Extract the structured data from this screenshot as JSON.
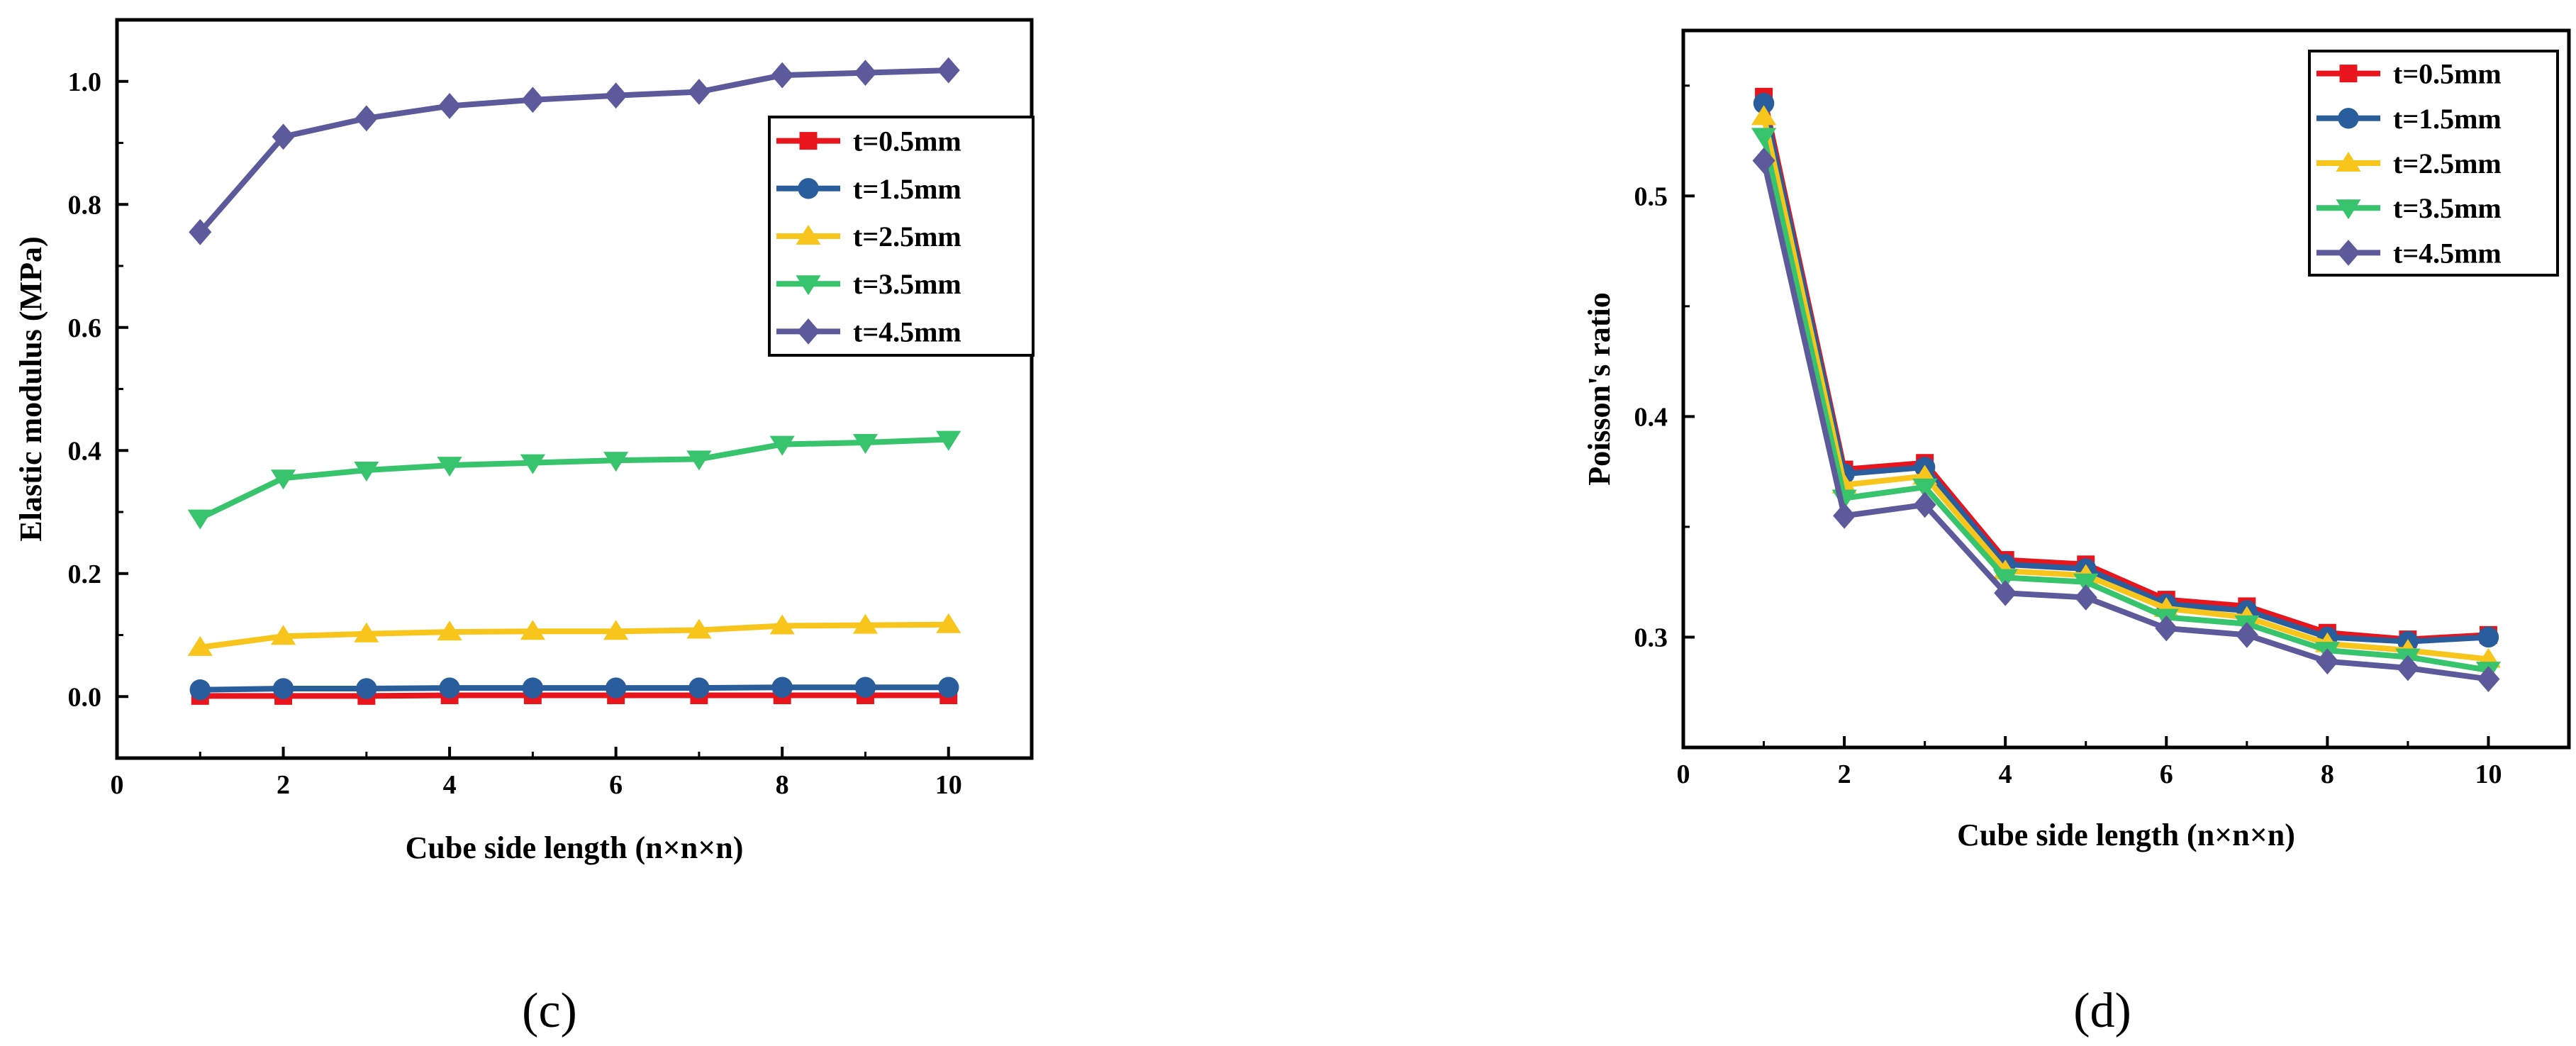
{
  "chart_data": [
    {
      "type": "line",
      "panel_label": "(c)",
      "title": "",
      "xlabel": "Cube side length (n×n×n)",
      "ylabel": "Elastic modulus (MPa)",
      "xlim": [
        0,
        11
      ],
      "ylim": [
        -0.1,
        1.1
      ],
      "xticks": [
        0,
        2,
        4,
        6,
        8,
        10
      ],
      "yticks": [
        0.0,
        0.2,
        0.4,
        0.6,
        0.8,
        1.0
      ],
      "ytick_decimals": 1,
      "legend_position": "upper-right",
      "x": [
        1,
        2,
        3,
        4,
        5,
        6,
        7,
        8,
        9,
        10
      ],
      "series": [
        {
          "name": "t=0.5mm",
          "color": "#e8151d",
          "marker": "square",
          "values": [
            0.001,
            0.001,
            0.001,
            0.002,
            0.002,
            0.002,
            0.002,
            0.002,
            0.002,
            0.002
          ]
        },
        {
          "name": "t=1.5mm",
          "color": "#2a5d9c",
          "marker": "circle",
          "values": [
            0.011,
            0.013,
            0.013,
            0.014,
            0.014,
            0.014,
            0.014,
            0.015,
            0.015,
            0.015
          ]
        },
        {
          "name": "t=2.5mm",
          "color": "#f7c51b",
          "marker": "triangle-up",
          "values": [
            0.08,
            0.098,
            0.102,
            0.105,
            0.106,
            0.106,
            0.108,
            0.115,
            0.116,
            0.117
          ]
        },
        {
          "name": "t=3.5mm",
          "color": "#38c46c",
          "marker": "triangle-down",
          "values": [
            0.29,
            0.355,
            0.368,
            0.376,
            0.38,
            0.384,
            0.386,
            0.41,
            0.413,
            0.418
          ]
        },
        {
          "name": "t=4.5mm",
          "color": "#5d5a9c",
          "marker": "diamond",
          "values": [
            0.755,
            0.91,
            0.94,
            0.96,
            0.97,
            0.977,
            0.983,
            1.01,
            1.014,
            1.018
          ]
        }
      ]
    },
    {
      "type": "line",
      "panel_label": "(d)",
      "title": "",
      "xlabel": "Cube side length (n×n×n)",
      "ylabel": "Poisson's ratio",
      "xlim": [
        0,
        11
      ],
      "ylim": [
        0.25,
        0.575
      ],
      "xticks": [
        0,
        2,
        4,
        6,
        8,
        10
      ],
      "yticks": [
        0.3,
        0.4,
        0.5
      ],
      "ytick_decimals": 1,
      "legend_position": "upper-right",
      "x": [
        1,
        2,
        3,
        4,
        5,
        6,
        7,
        8,
        9,
        10
      ],
      "series": [
        {
          "name": "t=0.5mm",
          "color": "#e8151d",
          "marker": "square",
          "values": [
            0.545,
            0.376,
            0.379,
            0.335,
            0.333,
            0.317,
            0.314,
            0.302,
            0.299,
            0.301
          ]
        },
        {
          "name": "t=1.5mm",
          "color": "#2a5d9c",
          "marker": "circle",
          "values": [
            0.542,
            0.374,
            0.377,
            0.333,
            0.331,
            0.315,
            0.312,
            0.3,
            0.298,
            0.3
          ]
        },
        {
          "name": "t=2.5mm",
          "color": "#f7c51b",
          "marker": "triangle-up",
          "values": [
            0.536,
            0.369,
            0.373,
            0.33,
            0.328,
            0.313,
            0.309,
            0.297,
            0.294,
            0.29
          ]
        },
        {
          "name": "t=3.5mm",
          "color": "#38c46c",
          "marker": "triangle-down",
          "values": [
            0.527,
            0.363,
            0.368,
            0.327,
            0.325,
            0.309,
            0.306,
            0.294,
            0.291,
            0.285
          ]
        },
        {
          "name": "t=4.5mm",
          "color": "#5d5a9c",
          "marker": "diamond",
          "values": [
            0.516,
            0.355,
            0.36,
            0.32,
            0.318,
            0.304,
            0.301,
            0.289,
            0.286,
            0.281
          ]
        }
      ]
    }
  ]
}
